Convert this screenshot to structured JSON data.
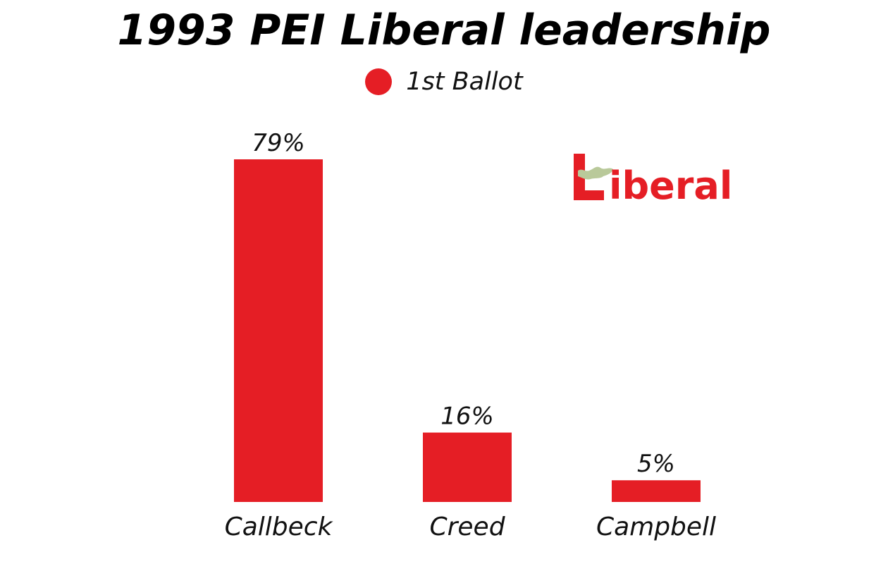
{
  "chart_data": {
    "type": "bar",
    "title": "1993 PEI Liberal leadership",
    "categories": [
      "Callbeck",
      "Creed",
      "Campbell"
    ],
    "series": [
      {
        "name": "1st Ballot",
        "values": [
          79,
          16,
          5
        ],
        "labels": [
          "79%",
          "16%",
          "5%"
        ]
      }
    ],
    "xlabel": "",
    "ylabel": "",
    "ylim": [
      0,
      100
    ],
    "grid": false,
    "legend_position": "top-center",
    "bar_color": "#e51e25"
  },
  "logo": {
    "text": "Liberal",
    "color": "#e51e25",
    "accent_color": "#b9c99a",
    "icon": "pei-map-icon"
  }
}
